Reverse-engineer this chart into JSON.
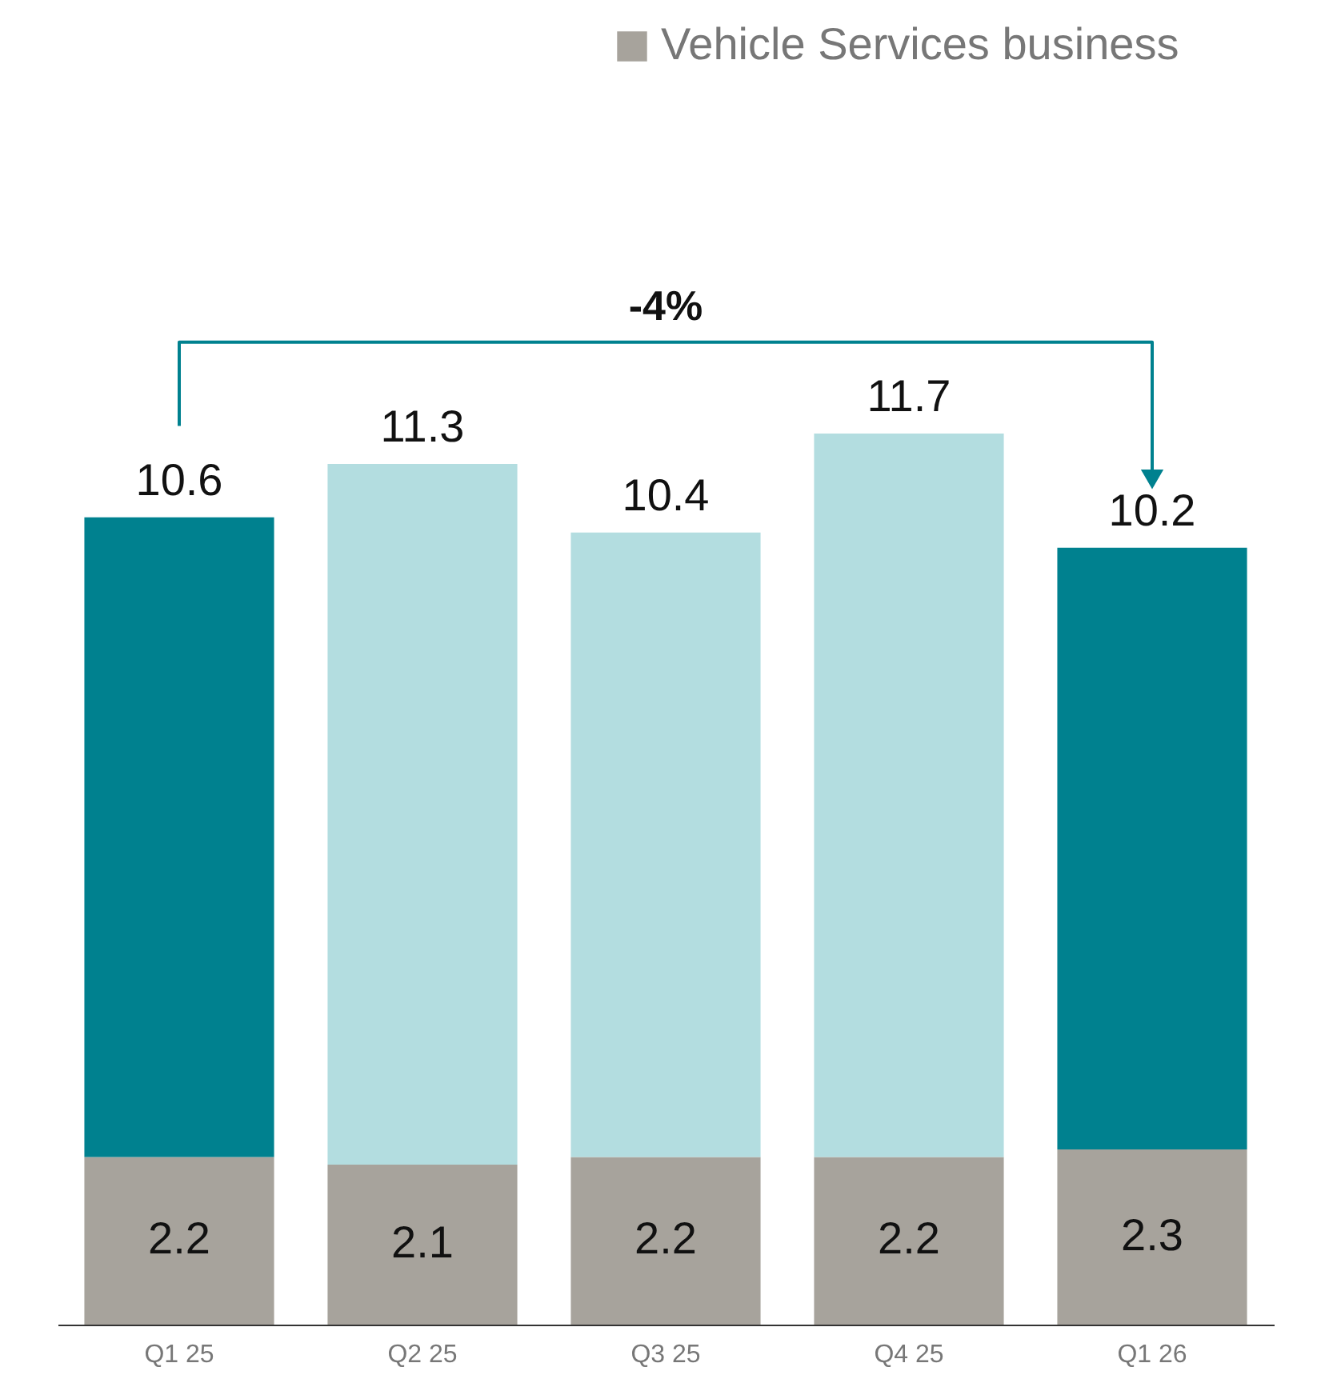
{
  "chart_data": {
    "type": "bar",
    "stacked": true,
    "categories": [
      "Q1 25",
      "Q2 25",
      "Q3 25",
      "Q4 25",
      "Q1 26"
    ],
    "series": [
      {
        "name": "Vehicle Services business",
        "color": "#a7a39c",
        "values": [
          2.2,
          2.1,
          2.2,
          2.2,
          2.3
        ],
        "value_labels": [
          "2.2",
          "2.1",
          "2.2",
          "2.2",
          "2.3"
        ]
      },
      {
        "colors": [
          "#00818f",
          "#b3dde0",
          "#b3dde0",
          "#b3dde0",
          "#00818f"
        ],
        "values": [
          8.4,
          9.2,
          8.2,
          9.5,
          7.9
        ]
      }
    ],
    "totals": [
      "10.6",
      "11.3",
      "10.4",
      "11.7",
      "10.2"
    ],
    "annotations": [
      "-4%"
    ],
    "tick_labels": "x",
    "grid": false,
    "legend": "top right"
  }
}
